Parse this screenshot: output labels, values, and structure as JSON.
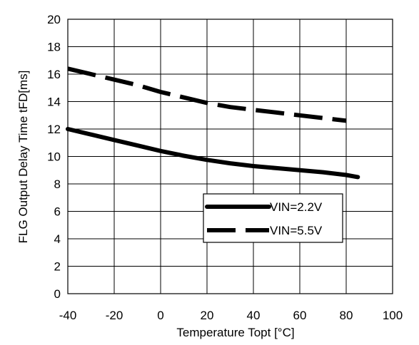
{
  "chart_data": {
    "type": "line",
    "title": "",
    "xlabel": "Temperature Topt [°C]",
    "ylabel": "FLG Output Delay Time tFD[ms]",
    "xlim": [
      -40,
      100
    ],
    "ylim": [
      0,
      20
    ],
    "x_ticks": [
      -40,
      -20,
      0,
      20,
      40,
      60,
      80,
      100
    ],
    "y_ticks": [
      0,
      2,
      4,
      6,
      8,
      10,
      12,
      14,
      16,
      18,
      20
    ],
    "x_tick_labels": [
      "-40",
      "-20",
      "0",
      "20",
      "40",
      "60",
      "80",
      "100"
    ],
    "y_tick_labels": [
      "0",
      "2",
      "4",
      "6",
      "8",
      "10",
      "12",
      "14",
      "16",
      "18",
      "20"
    ],
    "grid": true,
    "legend_position": "lower-right",
    "series": [
      {
        "name": "VIN=2.2V",
        "style": "solid",
        "color": "#000000",
        "x": [
          -40,
          -30,
          -20,
          -10,
          0,
          10,
          20,
          30,
          40,
          50,
          60,
          70,
          80,
          85
        ],
        "y": [
          12.0,
          11.6,
          11.2,
          10.8,
          10.4,
          10.05,
          9.75,
          9.5,
          9.3,
          9.15,
          9.0,
          8.85,
          8.65,
          8.5
        ]
      },
      {
        "name": "VIN=5.5V",
        "style": "dashed",
        "color": "#000000",
        "x": [
          -40,
          -30,
          -20,
          -10,
          0,
          10,
          20,
          30,
          40,
          50,
          60,
          70,
          80
        ],
        "y": [
          16.4,
          16.0,
          15.6,
          15.2,
          14.7,
          14.3,
          13.9,
          13.6,
          13.4,
          13.2,
          13.0,
          12.8,
          12.6
        ]
      }
    ]
  }
}
